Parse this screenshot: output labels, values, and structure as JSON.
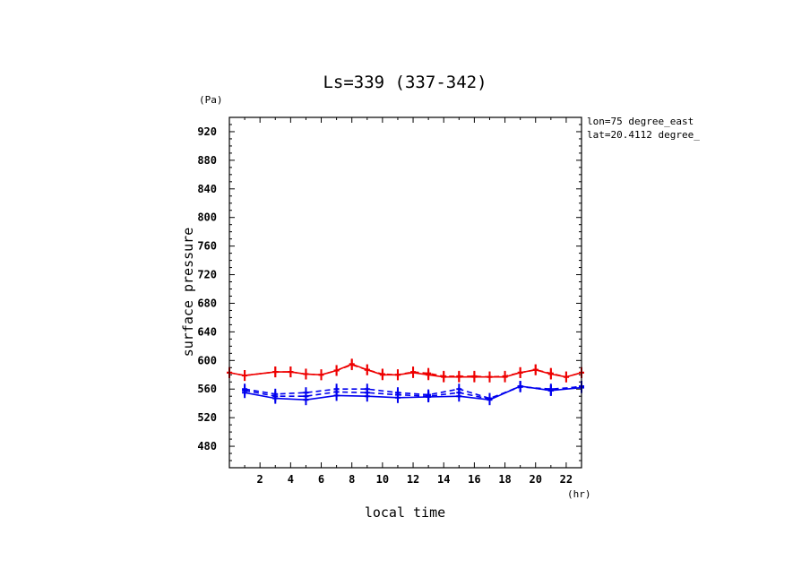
{
  "chart_data": {
    "type": "line",
    "title": "Ls=339 (337-342)",
    "xlabel": "local time",
    "ylabel": "surface pressure",
    "x_unit": "(hr)",
    "y_unit": "(Pa)",
    "xlim": [
      0,
      23
    ],
    "ylim": [
      450,
      940
    ],
    "x_ticks": [
      2,
      4,
      6,
      8,
      10,
      12,
      14,
      16,
      18,
      20,
      22
    ],
    "y_ticks": [
      480,
      520,
      560,
      600,
      640,
      680,
      720,
      760,
      800,
      840,
      880,
      920
    ],
    "annotations": [
      "lon=75 degree_east",
      "lat=20.4112 degree_"
    ],
    "grid": false,
    "colors": {
      "red": "#ee0000",
      "blue": "#0000ee"
    },
    "series": [
      {
        "color": "red",
        "style": "solid",
        "x": [
          0,
          1,
          3,
          4,
          5,
          6,
          7,
          8,
          9,
          10,
          11,
          12,
          13,
          14,
          15,
          16,
          17,
          18,
          19,
          20,
          21,
          22,
          23
        ],
        "y": [
          583,
          579,
          584,
          584,
          581,
          580,
          586,
          595,
          587,
          580,
          580,
          583,
          580,
          577,
          577,
          577,
          577,
          577,
          583,
          587,
          581,
          577,
          583
        ]
      },
      {
        "color": "red",
        "style": "dashed",
        "x": [
          0,
          1,
          3,
          4,
          5,
          6,
          7,
          8,
          9,
          10,
          11,
          12,
          13,
          14,
          15,
          16,
          17,
          18,
          19,
          20,
          21,
          22,
          23
        ],
        "y": [
          583,
          579,
          584,
          584,
          581,
          580,
          586,
          594,
          587,
          581,
          580,
          584,
          582,
          578,
          578,
          578,
          577,
          578,
          583,
          587,
          582,
          577,
          583
        ]
      },
      {
        "color": "blue",
        "style": "solid",
        "x": [
          1,
          3,
          5,
          7,
          9,
          11,
          13,
          15,
          17,
          19,
          21,
          23
        ],
        "y": [
          555,
          547,
          545,
          551,
          550,
          548,
          549,
          550,
          545,
          564,
          558,
          562
        ]
      },
      {
        "color": "blue",
        "style": "dashed",
        "x": [
          1,
          3,
          5,
          7,
          9,
          11,
          13,
          15,
          17,
          19,
          21,
          23
        ],
        "y": [
          560,
          553,
          555,
          560,
          560,
          555,
          552,
          560,
          547,
          563,
          560,
          563
        ]
      },
      {
        "color": "blue",
        "style": "dashed",
        "x": [
          1,
          3,
          5,
          7,
          9,
          11,
          13,
          15,
          17,
          19,
          21,
          23
        ],
        "y": [
          558,
          550,
          550,
          556,
          555,
          552,
          550,
          555,
          546,
          564,
          558,
          564
        ]
      }
    ]
  }
}
